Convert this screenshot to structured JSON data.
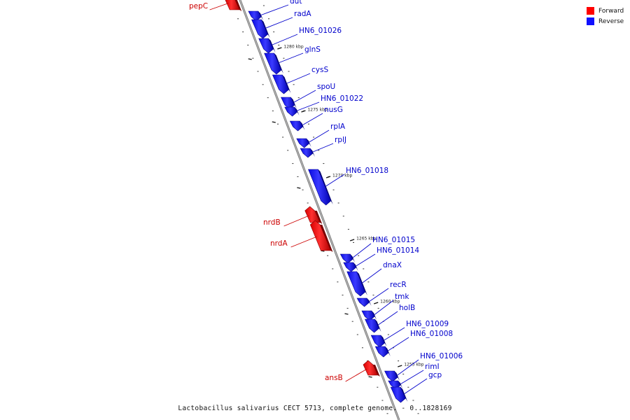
{
  "legend": {
    "forward": {
      "label": "Forward",
      "color": "#ff0000"
    },
    "reverse": {
      "label": "Reverse",
      "color": "#1010ff"
    }
  },
  "caption": "Lactobacillus salivarius CECT 5713, complete genome. - 0..1828169",
  "scale_labels": [
    "1280 kbp",
    "1275 kbp",
    "1270 kbp",
    "1265 kbp",
    "1260 kbp",
    "1255 kbp"
  ],
  "genes": [
    {
      "name": "pepC",
      "strand": "forward"
    },
    {
      "name": "dut",
      "strand": "reverse"
    },
    {
      "name": "radA",
      "strand": "reverse"
    },
    {
      "name": "HN6_01026",
      "strand": "reverse"
    },
    {
      "name": "glnS",
      "strand": "reverse"
    },
    {
      "name": "cysS",
      "strand": "reverse"
    },
    {
      "name": "spoU",
      "strand": "reverse"
    },
    {
      "name": "HN6_01022",
      "strand": "reverse"
    },
    {
      "name": "nusG",
      "strand": "reverse"
    },
    {
      "name": "rplA",
      "strand": "reverse"
    },
    {
      "name": "rplJ",
      "strand": "reverse"
    },
    {
      "name": "HN6_01018",
      "strand": "reverse"
    },
    {
      "name": "nrdB",
      "strand": "forward"
    },
    {
      "name": "nrdA",
      "strand": "forward"
    },
    {
      "name": "HN6_01015",
      "strand": "reverse"
    },
    {
      "name": "HN6_01014",
      "strand": "reverse"
    },
    {
      "name": "dnaX",
      "strand": "reverse"
    },
    {
      "name": "recR",
      "strand": "reverse"
    },
    {
      "name": "tmk",
      "strand": "reverse"
    },
    {
      "name": "holB",
      "strand": "reverse"
    },
    {
      "name": "HN6_01009",
      "strand": "reverse"
    },
    {
      "name": "HN6_01008",
      "strand": "reverse"
    },
    {
      "name": "HN6_01006",
      "strand": "reverse"
    },
    {
      "name": "rimI",
      "strand": "reverse"
    },
    {
      "name": "ansB",
      "strand": "forward"
    },
    {
      "name": "gcp",
      "strand": "reverse"
    }
  ]
}
